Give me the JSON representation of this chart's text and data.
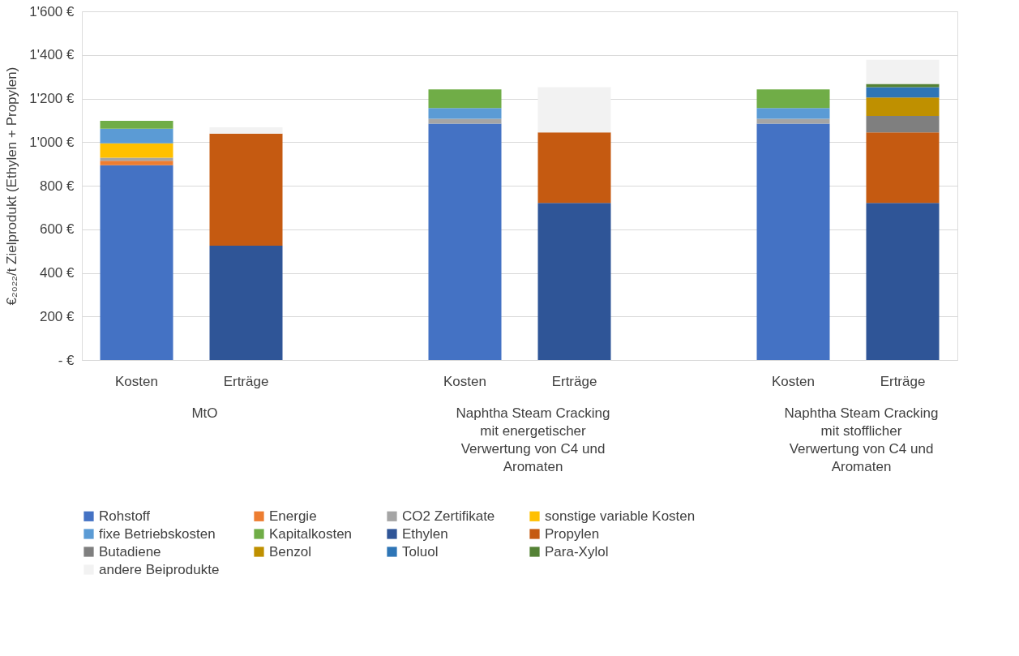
{
  "chart_data": {
    "type": "bar",
    "stacked": true,
    "ylabel": "€₂₀₂₂/t Zielprodukt (Ethylen + Propylen)",
    "categories": [
      "Kosten",
      "Erträge",
      null,
      "Kosten",
      "Erträge",
      null,
      "Kosten",
      "Erträge"
    ],
    "annotations": [
      "MtO",
      "Naphtha Steam Cracking mit energetischer Verwertung von C4 und Aromaten",
      "Naphtha Steam Cracking mit stofflicher Verwertung von C4 und Aromaten"
    ],
    "ylim": [
      0,
      1600
    ],
    "yticks": [
      {
        "value": 0,
        "label": "-  €"
      },
      {
        "value": 200,
        "label": "200 €"
      },
      {
        "value": 400,
        "label": "400 €"
      },
      {
        "value": 600,
        "label": "600 €"
      },
      {
        "value": 800,
        "label": "800 €"
      },
      {
        "value": 1000,
        "label": "1'000 €"
      },
      {
        "value": 1200,
        "label": "1'200 €"
      },
      {
        "value": 1400,
        "label": "1'400 €"
      },
      {
        "value": 1600,
        "label": "1'600 €"
      }
    ],
    "grid": "y",
    "legend": "bottom",
    "series": [
      {
        "name": "Rohstoff",
        "color": "#4472c4",
        "values": [
          894,
          null,
          null,
          1085,
          null,
          null,
          1085,
          null
        ]
      },
      {
        "name": "Energie",
        "color": "#ed7d31",
        "values": [
          20,
          null,
          null,
          null,
          null,
          null,
          null,
          null
        ]
      },
      {
        "name": "CO2 Zertifikate",
        "color": "#a5a5a5",
        "values": [
          14,
          null,
          null,
          22,
          null,
          null,
          22,
          null
        ]
      },
      {
        "name": "sonstige variable Kosten",
        "color": "#ffc000",
        "values": [
          66,
          null,
          null,
          null,
          null,
          null,
          null,
          null
        ]
      },
      {
        "name": "fixe Betriebskosten",
        "color": "#5b9bd5",
        "values": [
          67,
          null,
          null,
          49,
          null,
          null,
          49,
          null
        ]
      },
      {
        "name": "Kapitalkosten",
        "color": "#70ad47",
        "values": [
          37,
          null,
          null,
          86,
          null,
          null,
          86,
          null
        ]
      },
      {
        "name": "Ethylen",
        "color": "#2f5597",
        "values": [
          null,
          525,
          null,
          null,
          721,
          null,
          null,
          721
        ]
      },
      {
        "name": "Propylen",
        "color": "#c55a11",
        "values": [
          null,
          514,
          null,
          null,
          324,
          null,
          null,
          324
        ]
      },
      {
        "name": "Butadiene",
        "color": "#7f7f7f",
        "values": [
          null,
          null,
          null,
          null,
          null,
          null,
          null,
          75
        ]
      },
      {
        "name": "Benzol",
        "color": "#bf9000",
        "values": [
          null,
          null,
          null,
          null,
          null,
          null,
          null,
          85
        ]
      },
      {
        "name": "Toluol",
        "color": "#2e75b6",
        "values": [
          null,
          null,
          null,
          null,
          null,
          null,
          null,
          47
        ]
      },
      {
        "name": "Para-Xylol",
        "color": "#548235",
        "values": [
          null,
          null,
          null,
          null,
          null,
          null,
          null,
          15
        ]
      },
      {
        "name": "andere Beiprodukte",
        "color": "#f2f2f2",
        "values": [
          null,
          29,
          null,
          null,
          207,
          null,
          null,
          111
        ]
      }
    ]
  }
}
